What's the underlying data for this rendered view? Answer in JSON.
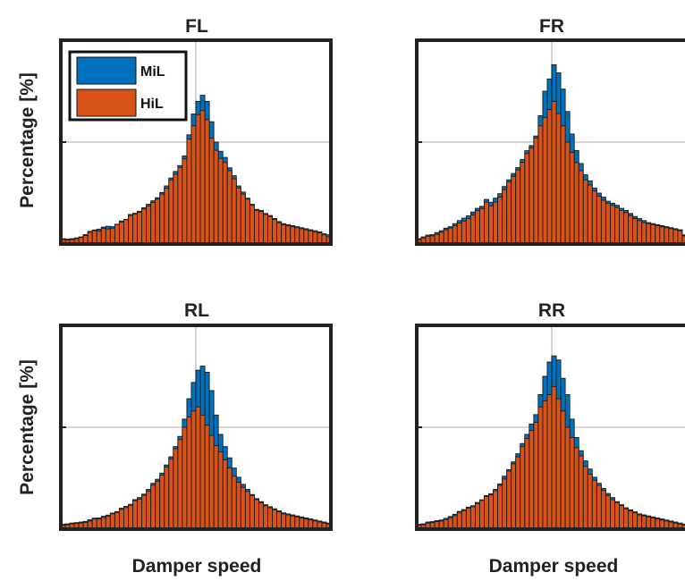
{
  "figure": {
    "ylabel": "Percentage [%]",
    "xlabel": "Damper speed"
  },
  "legend": {
    "entries": [
      {
        "name": "MiL",
        "color": "#0072BD"
      },
      {
        "name": "HiL",
        "color": "#D95319"
      }
    ]
  },
  "chart_data": [
    {
      "type": "bar",
      "title": "FL",
      "xlabel": "",
      "ylabel": "Percentage [%]",
      "grid": true,
      "legend_position": "top-left",
      "xlim": [
        0,
        60
      ],
      "ylim": [
        0,
        100
      ],
      "series": [
        {
          "name": "MiL",
          "color": "#0072BD",
          "values": [
            2.6,
            2.4,
            2.6,
            3,
            3.5,
            4.6,
            6.2,
            6.9,
            7.3,
            8.3,
            8.7,
            8.5,
            9.7,
            11.3,
            12.1,
            14.5,
            15.1,
            16.1,
            17.8,
            19.5,
            21.2,
            22.7,
            25.3,
            28.5,
            32.4,
            35.6,
            38.5,
            43.2,
            53.6,
            63.8,
            70,
            73,
            70,
            60,
            50,
            45.5,
            42.5,
            37.4,
            33.5,
            28.5,
            25.5,
            22.5,
            19.5,
            17,
            16.5,
            15,
            14,
            12.5,
            11,
            10,
            9.5,
            9,
            8.5,
            8,
            7.5,
            7,
            6.5,
            6,
            5,
            4.5
          ]
        },
        {
          "name": "HiL",
          "color": "#D95319",
          "values": [
            2.2,
            2,
            2.2,
            2.6,
            3.2,
            4.2,
            5.8,
            6.6,
            6.3,
            7.7,
            7.4,
            7.8,
            9.6,
            10.8,
            12,
            14,
            14.6,
            15.6,
            17.2,
            18.7,
            20.4,
            22,
            24.5,
            27.4,
            31.5,
            34.2,
            37.6,
            41.8,
            51.5,
            58,
            63.5,
            65.5,
            61,
            52,
            46,
            42,
            40,
            36,
            32,
            27.5,
            24.5,
            22,
            19,
            16.5,
            16,
            14.5,
            13.5,
            12,
            10.5,
            9.5,
            9,
            8.5,
            8,
            7.5,
            7,
            6.5,
            6,
            5.5,
            4.5,
            3.5
          ]
        }
      ]
    },
    {
      "type": "bar",
      "title": "FR",
      "xlabel": "",
      "ylabel": "",
      "grid": true,
      "xlim": [
        0,
        60
      ],
      "ylim": [
        0,
        100
      ],
      "series": [
        {
          "name": "MiL",
          "color": "#0072BD",
          "values": [
            2.6,
            3.5,
            4.4,
            4.6,
            5.6,
            6.5,
            7.8,
            8.5,
            10,
            11.5,
            12.7,
            13.8,
            15.7,
            17.5,
            18.5,
            21.9,
            20.5,
            22.5,
            24.7,
            28.2,
            31.5,
            34.6,
            37.5,
            41.5,
            45.8,
            48.3,
            53,
            63,
            75,
            81,
            88,
            84,
            76,
            65,
            54,
            45.9,
            39.5,
            34,
            31,
            27.5,
            25,
            23,
            21,
            20,
            19,
            17.5,
            16.5,
            15,
            13.5,
            12.5,
            11.5,
            10.5,
            10,
            9.5,
            9,
            8.5,
            8,
            7.5,
            7,
            4.5
          ]
        },
        {
          "name": "HiL",
          "color": "#D95319",
          "values": [
            2.2,
            3,
            3.8,
            4,
            4.8,
            5.8,
            7,
            7.8,
            8.9,
            10.3,
            11.3,
            12.5,
            14.2,
            16.4,
            17.4,
            20.6,
            18.8,
            20.6,
            23,
            26.7,
            30.5,
            33.2,
            36.4,
            40.1,
            44.4,
            47.2,
            52,
            58,
            62,
            66,
            70,
            64,
            58,
            50,
            45,
            40,
            36,
            31.5,
            29,
            26,
            23.5,
            21.5,
            20,
            19,
            18,
            16.5,
            15.5,
            14,
            12.5,
            11.5,
            10.5,
            10,
            9.5,
            9,
            8.5,
            8,
            7.5,
            7,
            6.5,
            4
          ]
        }
      ]
    },
    {
      "type": "bar",
      "title": "RL",
      "xlabel": "Damper speed",
      "ylabel": "Percentage [%]",
      "grid": true,
      "xlim": [
        0,
        60
      ],
      "ylim": [
        0,
        100
      ],
      "series": [
        {
          "name": "MiL",
          "color": "#0072BD",
          "values": [
            2.4,
            2.6,
            3,
            3.2,
            3.5,
            3.8,
            4.6,
            5.4,
            5.5,
            6.3,
            6.9,
            7.9,
            8.6,
            10.3,
            11.2,
            12.2,
            14.5,
            15.5,
            17.2,
            19.5,
            22.5,
            24.5,
            27.5,
            31.5,
            35.5,
            40.5,
            45.5,
            54,
            64,
            72,
            78,
            80,
            77,
            68,
            56,
            46.5,
            40.5,
            35,
            30,
            25.5,
            22,
            19.5,
            17,
            15,
            13.5,
            12,
            11,
            10,
            9,
            8,
            7.5,
            7,
            6.5,
            6,
            5.5,
            5,
            4.5,
            4,
            3.5,
            3
          ]
        },
        {
          "name": "HiL",
          "color": "#D95319",
          "values": [
            2,
            2.2,
            2.6,
            2.8,
            3,
            3.3,
            4,
            5,
            5.1,
            5.8,
            6.4,
            7.5,
            8.2,
            9.7,
            10.6,
            11.7,
            14,
            14.8,
            16.6,
            18.7,
            21.6,
            23.5,
            26.5,
            30.5,
            34.5,
            39.5,
            44,
            50,
            55,
            58,
            60,
            56,
            51,
            46,
            41,
            38,
            34,
            30,
            26,
            23,
            20.5,
            18.5,
            16.5,
            14.5,
            13,
            11.5,
            10.5,
            9.5,
            8.5,
            7.5,
            7,
            6.5,
            6,
            5.5,
            5,
            4.5,
            4,
            3.5,
            3,
            2.5
          ]
        }
      ]
    },
    {
      "type": "bar",
      "title": "RR",
      "xlabel": "Damper speed",
      "ylabel": "",
      "grid": true,
      "xlim": [
        0,
        60
      ],
      "ylim": [
        0,
        100
      ],
      "series": [
        {
          "name": "MiL",
          "color": "#0072BD",
          "values": [
            2.4,
            2.6,
            3.5,
            3.7,
            4.2,
            4.5,
            5.3,
            6.2,
            7.3,
            8.7,
            9.6,
            10.8,
            11.5,
            13.1,
            14.4,
            16.5,
            17.4,
            19.5,
            22.2,
            26,
            29.2,
            33,
            37,
            42,
            46.5,
            51.6,
            56.2,
            66,
            75,
            82,
            85,
            83,
            74,
            66,
            54,
            45,
            38.5,
            33.5,
            29.5,
            25.5,
            22.5,
            20,
            17.5,
            15.5,
            13.5,
            12,
            10.5,
            9.5,
            8.5,
            7.5,
            7,
            6.5,
            6,
            5.5,
            5,
            4.5,
            4,
            3.5,
            3,
            2.5
          ]
        },
        {
          "name": "HiL",
          "color": "#D95319",
          "values": [
            2,
            2.2,
            3,
            3.2,
            3.7,
            4,
            4.7,
            5.6,
            6.6,
            8.3,
            9.1,
            10.3,
            11,
            12.6,
            14.1,
            16,
            16.8,
            18.9,
            21.5,
            24.6,
            28.5,
            32.1,
            35.5,
            40.5,
            44.5,
            48.5,
            52.4,
            60,
            63,
            66,
            70,
            64,
            58,
            50,
            45,
            40,
            36,
            30.8,
            27,
            24,
            21.5,
            19,
            16.5,
            14.5,
            13,
            11.5,
            10,
            9,
            8,
            7,
            6.5,
            6,
            5.5,
            5,
            4.5,
            4,
            3.5,
            3,
            2.5,
            2
          ]
        }
      ]
    }
  ]
}
